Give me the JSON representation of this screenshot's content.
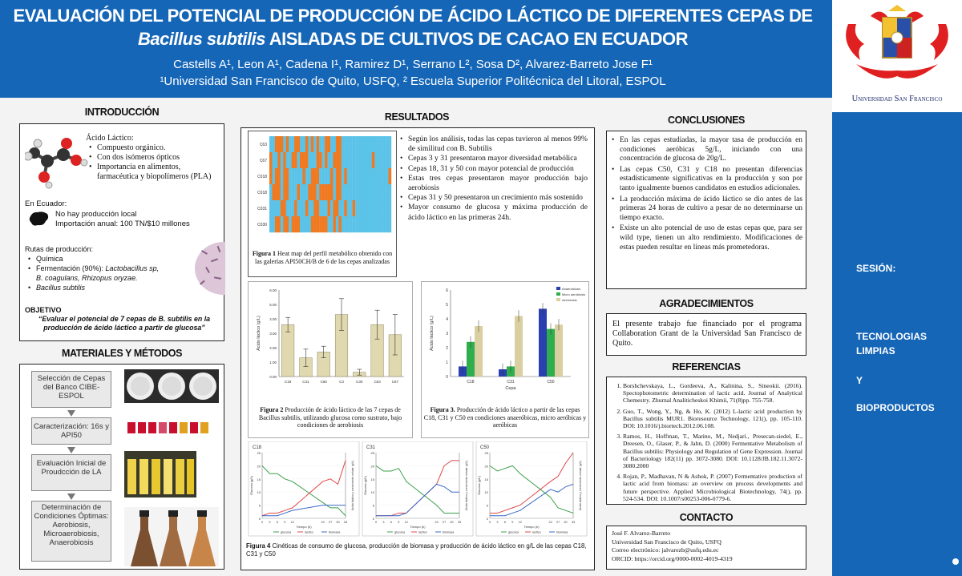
{
  "header": {
    "title_line1": "EVALUACIÓN DEL POTENCIAL DE PRODUCCIÓN DE ÁCIDO LÁCTICO DE DIFERENTES CEPAS DE",
    "title_line2_italic": "Bacillus subtilis",
    "title_line2_rest": " AISLADAS DE CULTIVOS DE CACAO EN ECUADOR",
    "authors": "Castells A¹, Leon A¹, Cadena I¹, Ramirez D¹, Serrano L², Sosa D², Alvarez-Barreto Jose F¹",
    "affiliations": "¹Universidad San Francisco de Quito, USFQ, ² Escuela Superior Politécnica del Litoral, ESPOL"
  },
  "logo": {
    "text": "Universidad San Francisco",
    "icon": "university-crest-icon"
  },
  "sidebar": {
    "session": "SESIÓN:",
    "topic1": "TECNOLOGIAS",
    "topic2": "LIMPIAS",
    "and": "Y",
    "topic3": "BIOPRODUCTOS"
  },
  "intro": {
    "title": "INTRODUCCIÓN",
    "acid_heading": "Ácido Láctico:",
    "acid_points": [
      "Compuesto orgánico.",
      "Con dos isómeros ópticos",
      "Importancia en alimentos, farmacéutica y biopolímeros (PLA)"
    ],
    "ecuador_heading": "En Ecuador:",
    "ecuador_line1": "No hay producción local",
    "ecuador_line2": "Importación anual: 100 TN/$10 millones",
    "routes_heading": "Rutas de producción:",
    "route1": "Química",
    "route2_prefix": "Fermentación (90%): ",
    "route2_italic": "Lactobacillus sp,",
    "route2_line2": "B. coagulans, Rhizopus oryzae.",
    "route3": "Bacillus subtilis",
    "objective_heading": "OBJETIVO",
    "objective_text": "“Evaluar el potencial de 7 cepas de B. subtilis en la producción de ácido láctico a partir de glucosa”"
  },
  "methods": {
    "title": "MATERIALES Y MÉTODOS",
    "steps": [
      "Selección de Cepas del Banco CIBE-ESPOL",
      "Caracterización: 16s y API50",
      "Evaluación Inicial de Proudcción de LA",
      "Determinación de Condiciones Óptimas: Aerobiosis, Microaerobiosis, Anaerobiosis"
    ]
  },
  "results": {
    "title": "RESULTADOS",
    "bullets": [
      "Según los análisis, todas las cepas tuvieron al menos 99% de similitud con B. Subtilis",
      "Cepas 3 y 31 presentaron mayor diversidad metabólica",
      "Cepas 18, 31 y 50 con mayor potencial de producción",
      "Estas tres cepas presentaron mayor producción bajo aerobiosis",
      "Cepas 31 y 50 presentaron un crecimiento más sostenido",
      "Mayor consumo de glucosa y máxima producción de ácido láctico en las primeras 24h."
    ],
    "fig1_bold": "Figura 1",
    "fig1_caption": " Heat map del perfil metabólico obtenido con las galerías API50CH/B de 6 de las cepas analizadas",
    "heatmap_rows": [
      "C63",
      "C67",
      "C018",
      "C018",
      "C031",
      "C030"
    ],
    "fig2_bold": "Figura 2",
    "fig2_caption": " Producción de ácido láctico de las 7 cepas de Bacillus subtilis, utilizando glucosa como sustrato, bajo condiciones de aerobiosis",
    "fig3_bold": "Figura 3.",
    "fig3_caption": " Producción de ácido láctico a partir de las cepas C18, C31 y C50 en condiciones anaeróbicas, micro aeróbicas y aeróbicas",
    "fig4_bold": "Figura 4",
    "fig4_caption": " Cinéticas de consumo de glucosa, producción de biomasa y producción de ácido láctico en g/L de las cepas C18, C31 y C50",
    "fig2_ylabel": "Ácido láctico (g/L)",
    "fig3_ylabel": "Ácido láctico (g/L)",
    "fig3_xlabel": "Cepa",
    "fig3_legend": [
      "Anaerobiosis",
      "Micro aerobiosis",
      "Aerobiosis"
    ],
    "kinetics_titles": [
      "C18",
      "C31",
      "C50"
    ],
    "kinetics_xlabel": "Tiempo (h)",
    "kinetics_ylabel_left": "Glucosa (g/L)",
    "kinetics_ylabel_right": "Ácido láctico y crecimiento celular (g/L)",
    "kinetics_legend": [
      "glucosa",
      "lactico",
      "biomasa"
    ]
  },
  "conclusions": {
    "title": "CONCLUSIONES",
    "points": [
      "En las cepas estudiadas, la mayor tasa de producción en condiciones aeróbicas 5g/L, iniciando con una concentración de glucosa de 20g/L.",
      "Las cepas C50, C31 y C18 no presentan diferencias estadísticamente significativas en la producción y son por tanto igualmente buenos candidatos en estudios adicionales.",
      " La producción máxima de ácido láctico se dio antes de las primeras 24 horas de cultivo a pesar de no determinarse un tiempo exacto.",
      "Existe un alto potencial de uso de estas cepas que, para ser wild type, tienen un alto rendimiento. Modificaciones de estas pueden resultar en líneas más prometedoras."
    ]
  },
  "ack": {
    "title": "AGRADECIMIENTOS",
    "text": "El presente trabajo fue financiado por el programa Collaboration Grant de la Universidad San Francisco de Quito."
  },
  "refs": {
    "title": "REFERENCIAS",
    "items": [
      "Borshchevskaya, L., Gordeeva, A., Kalinina, S., Sineokii. (2016). Spectophotometric determination of lactic acid. Journal of Analytical Chemestry. Zhurnal Analiticheskoi Khimii, 71(8)pp. 755-758.",
      "Guo, T., Wong, Y., Ng, & Ho, K. (2012) L-lactic acid production by Bacillus subtilis MUR1. Bioresource Technology, 121(), pp. 105-110. DOI: 10.1016/j.biortech.2012.06.108.",
      "Ramos, H., Hoffman, T., Marino, M., Nedjari., Presecan-siedel, E., Dreesen, O., Glaser, P., & Jahn, D. (2000) Fermentative Metabolism of Bacillus subtilis: Physiology and Regulation of Gene Expression. Journal of Bacteriology 182(11) pp. 3072-3080. DOI: 10.1128/JB.182.11.3072-3080.2000",
      "Rojan, P., Madhavan, N & Ashok, P. (2007) Fermentative production of lactic acid from biomass: an overview on process developments and future perspective. Applied Microbiological Biotechnology, 74(), pp. 524-534. DOI: 10.1007/s00253-006-0779-6."
    ]
  },
  "contact": {
    "title": "CONTACTO",
    "name": "José F. Alvarez-Barreto",
    "org": "Universidad San Francisco de Quito, USFQ",
    "email": "Correo electrónico: jalvarezb@usfq.edu.ec",
    "orcid": "ORCID: https://orcid.org/0000-0002-4019-4319"
  },
  "chart_data": [
    {
      "type": "bar",
      "title": "",
      "ylabel": "Ácido láctico (g/L)",
      "ylim": [
        0,
        6
      ],
      "categories": [
        "C18",
        "C31",
        "C50",
        "C3",
        "C30",
        "C63",
        "C67"
      ],
      "values": [
        3.6,
        1.3,
        1.7,
        4.3,
        0.3,
        3.6,
        2.9
      ],
      "errors": [
        0.5,
        0.6,
        0.4,
        1.1,
        0.2,
        1.0,
        1.4
      ]
    },
    {
      "type": "bar",
      "title": "",
      "xlabel": "Cepa",
      "ylabel": "Ácido láctico (g/L)",
      "ylim": [
        0,
        6
      ],
      "categories": [
        "C18",
        "C31",
        "C50"
      ],
      "series": [
        {
          "name": "Anaerobiosis",
          "values": [
            0.7,
            0.5,
            4.7
          ],
          "color": "#2a3fb0"
        },
        {
          "name": "Micro aerobiosis",
          "values": [
            2.4,
            0.7,
            3.3
          ],
          "color": "#2fae4d"
        },
        {
          "name": "Aerobiosis",
          "values": [
            3.5,
            4.2,
            3.6
          ],
          "color": "#d9cfa1"
        }
      ]
    },
    {
      "type": "line",
      "title": "C18",
      "x": [
        0,
        3,
        6,
        9,
        12,
        24,
        27,
        30,
        33
      ],
      "series": [
        {
          "name": "glucosa",
          "values": [
            20,
            17,
            17,
            15,
            14,
            6,
            4,
            4,
            1
          ]
        },
        {
          "name": "lactico",
          "values": [
            1,
            2,
            2,
            3,
            4,
            14,
            15,
            13,
            22
          ]
        },
        {
          "name": "biomasa",
          "values": [
            1,
            1,
            1,
            2,
            3,
            5,
            5,
            5,
            5
          ]
        }
      ]
    },
    {
      "type": "line",
      "title": "C31",
      "x": [
        0,
        3,
        6,
        9,
        12,
        24,
        27,
        30,
        33
      ],
      "series": [
        {
          "name": "glucosa",
          "values": [
            20,
            18,
            18,
            19,
            14,
            5,
            2,
            2,
            2
          ]
        },
        {
          "name": "lactico",
          "values": [
            1,
            1,
            1,
            2,
            2,
            13,
            20,
            22,
            22
          ]
        },
        {
          "name": "biomasa",
          "values": [
            1,
            1,
            1,
            1,
            2,
            13,
            12,
            10,
            10
          ]
        }
      ]
    },
    {
      "type": "line",
      "title": "C50",
      "x": [
        0,
        3,
        6,
        9,
        12,
        24,
        27,
        30,
        33
      ],
      "series": [
        {
          "name": "glucosa",
          "values": [
            20,
            18,
            19,
            20,
            17,
            8,
            4,
            3,
            2
          ]
        },
        {
          "name": "lactico",
          "values": [
            2,
            2,
            3,
            4,
            5,
            14,
            16,
            21,
            25
          ]
        },
        {
          "name": "biomasa",
          "values": [
            1,
            1,
            1,
            2,
            3,
            11,
            10,
            12,
            13
          ]
        }
      ]
    }
  ],
  "colors": {
    "header_blue": "#1566b7",
    "heat_orange": "#f07a22",
    "heat_blue": "#5cc3e8"
  }
}
